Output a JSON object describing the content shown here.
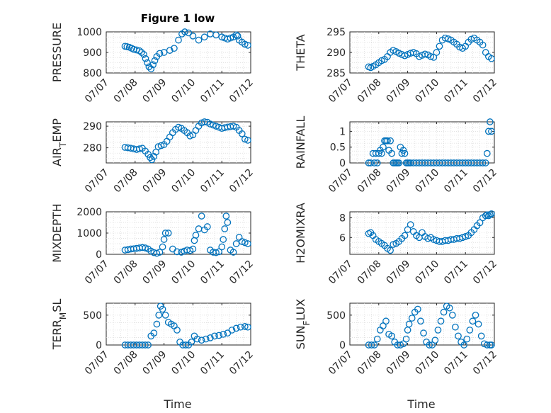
{
  "figure": {
    "title": "Figure 1 low",
    "xlabel": "Time"
  },
  "colors": {
    "marker": "#0072BD",
    "axis": "#262626",
    "grid": "#d9d9d9"
  },
  "chart_data": [
    {
      "type": "scatter",
      "name": "PRESSURE",
      "ylabel": "PRESSURE",
      "xlabel": "",
      "title": "Figure 1 low",
      "x_ticklabels": [
        "07/07",
        "07/08",
        "07/09",
        "07/10",
        "07/11",
        "07/12"
      ],
      "xlim": [
        0,
        5
      ],
      "ylim": [
        800,
        1000
      ],
      "yticks": [
        800,
        900,
        1000
      ],
      "grid": true,
      "x": [
        0.65,
        0.72,
        0.8,
        0.88,
        0.95,
        1.05,
        1.15,
        1.22,
        1.3,
        1.36,
        1.42,
        1.48,
        1.55,
        1.62,
        1.68,
        1.75,
        1.85,
        2.0,
        2.2,
        2.35,
        2.5,
        2.62,
        2.72,
        2.85,
        3.0,
        3.2,
        3.4,
        3.6,
        3.8,
        4.0,
        4.1,
        4.2,
        4.3,
        4.4,
        4.5,
        4.55,
        4.6,
        4.7,
        4.8,
        4.9
      ],
      "y": [
        930,
        928,
        925,
        920,
        915,
        912,
        908,
        900,
        890,
        870,
        850,
        830,
        820,
        840,
        860,
        880,
        895,
        900,
        910,
        920,
        960,
        990,
        1000,
        995,
        980,
        960,
        975,
        990,
        985,
        975,
        970,
        965,
        970,
        975,
        985,
        980,
        960,
        950,
        940,
        935
      ]
    },
    {
      "type": "scatter",
      "name": "THETA",
      "ylabel": "THETA",
      "x_ticklabels": [
        "07/07",
        "07/08",
        "07/09",
        "07/10",
        "07/11",
        "07/12"
      ],
      "xlim": [
        0,
        5
      ],
      "ylim": [
        285,
        295
      ],
      "yticks": [
        285,
        290,
        295
      ],
      "grid": true,
      "x": [
        0.65,
        0.72,
        0.8,
        0.9,
        1.0,
        1.1,
        1.2,
        1.3,
        1.4,
        1.5,
        1.6,
        1.7,
        1.8,
        1.9,
        2.0,
        2.1,
        2.2,
        2.3,
        2.4,
        2.5,
        2.6,
        2.7,
        2.8,
        2.9,
        3.0,
        3.1,
        3.2,
        3.3,
        3.4,
        3.5,
        3.6,
        3.7,
        3.8,
        3.9,
        4.0,
        4.1,
        4.2,
        4.3,
        4.4,
        4.5,
        4.6,
        4.7,
        4.8,
        4.9
      ],
      "y": [
        286.5,
        286.3,
        286.6,
        287,
        287.5,
        288,
        288.3,
        289,
        290,
        290.5,
        290.2,
        289.8,
        289.5,
        289.2,
        289.5,
        289.8,
        290,
        289.7,
        289,
        289.3,
        289.6,
        289.4,
        289,
        288.8,
        290,
        291.5,
        293,
        293.5,
        293.3,
        293,
        292.5,
        292,
        291.3,
        291,
        291.5,
        292.5,
        293.2,
        293.5,
        293,
        292.5,
        291.8,
        290,
        289,
        288.5
      ]
    },
    {
      "type": "scatter",
      "name": "AIR_TEMP",
      "ylabel": "AIR_TEMP",
      "x_ticklabels": [
        "07/07",
        "07/08",
        "07/09",
        "07/10",
        "07/11",
        "07/12"
      ],
      "xlim": [
        0,
        5
      ],
      "ylim": [
        273,
        292
      ],
      "yticks": [
        280,
        290
      ],
      "grid": true,
      "x": [
        0.65,
        0.75,
        0.85,
        0.95,
        1.05,
        1.15,
        1.25,
        1.35,
        1.45,
        1.52,
        1.58,
        1.65,
        1.72,
        1.8,
        1.9,
        2.0,
        2.1,
        2.2,
        2.3,
        2.4,
        2.5,
        2.6,
        2.7,
        2.8,
        2.9,
        3.0,
        3.1,
        3.2,
        3.3,
        3.4,
        3.5,
        3.6,
        3.7,
        3.8,
        3.9,
        4.0,
        4.1,
        4.2,
        4.3,
        4.4,
        4.5,
        4.6,
        4.7,
        4.8,
        4.9
      ],
      "y": [
        280.2,
        280,
        279.8,
        279.5,
        279.2,
        279.5,
        279.8,
        278.5,
        277,
        275.5,
        274.5,
        276,
        278,
        280.5,
        281,
        281.5,
        283,
        285,
        287,
        288.5,
        289.5,
        289,
        288,
        287,
        285.5,
        286,
        288,
        290,
        291.5,
        292,
        291.8,
        291,
        290.5,
        290,
        289.5,
        289,
        289.3,
        289.6,
        289.8,
        290,
        289.5,
        288,
        286.5,
        284,
        283.5
      ]
    },
    {
      "type": "scatter",
      "name": "RAINFALL",
      "ylabel": "RAINFALL",
      "x_ticklabels": [
        "07/07",
        "07/08",
        "07/09",
        "07/10",
        "07/11",
        "07/12"
      ],
      "xlim": [
        0,
        5
      ],
      "ylim": [
        0,
        1.3
      ],
      "yticks": [
        0,
        0.5,
        1
      ],
      "grid": true,
      "x": [
        0.65,
        0.72,
        0.8,
        0.85,
        0.9,
        0.95,
        1.0,
        1.05,
        1.1,
        1.15,
        1.2,
        1.25,
        1.3,
        1.35,
        1.4,
        1.45,
        1.5,
        1.55,
        1.6,
        1.65,
        1.7,
        1.75,
        1.8,
        1.85,
        1.9,
        1.95,
        2.0,
        2.05,
        2.1,
        2.2,
        2.3,
        2.4,
        2.5,
        2.6,
        2.7,
        2.8,
        2.9,
        3.0,
        3.1,
        3.2,
        3.3,
        3.4,
        3.5,
        3.6,
        3.7,
        3.8,
        3.9,
        4.0,
        4.1,
        4.2,
        4.3,
        4.4,
        4.5,
        4.6,
        4.7,
        4.75,
        4.8,
        4.85,
        4.9
      ],
      "y": [
        0,
        0,
        0.3,
        0,
        0.3,
        0,
        0.3,
        0.4,
        0.3,
        0.5,
        0.7,
        0.7,
        0.7,
        0.4,
        0.7,
        0.3,
        0,
        0,
        0,
        0,
        0,
        0.5,
        0.3,
        0.4,
        0.3,
        0,
        0,
        0,
        0,
        0,
        0,
        0,
        0,
        0,
        0,
        0,
        0,
        0,
        0,
        0,
        0,
        0,
        0,
        0,
        0,
        0,
        0,
        0,
        0,
        0,
        0,
        0,
        0,
        0,
        0,
        0.3,
        1.0,
        1.3,
        1.0
      ]
    },
    {
      "type": "scatter",
      "name": "MIXDEPTH",
      "ylabel": "MIXDEPTH",
      "x_ticklabels": [
        "07/07",
        "07/08",
        "07/09",
        "07/10",
        "07/11",
        "07/12"
      ],
      "xlim": [
        0,
        5
      ],
      "ylim": [
        0,
        2000
      ],
      "yticks": [
        0,
        1000,
        2000
      ],
      "grid": true,
      "x": [
        0.65,
        0.75,
        0.85,
        0.95,
        1.05,
        1.15,
        1.25,
        1.35,
        1.45,
        1.55,
        1.65,
        1.75,
        1.85,
        1.95,
        2.0,
        2.05,
        2.15,
        2.3,
        2.45,
        2.6,
        2.7,
        2.8,
        2.9,
        3.0,
        3.05,
        3.1,
        3.2,
        3.3,
        3.4,
        3.5,
        3.6,
        3.7,
        3.8,
        3.9,
        4.0,
        4.05,
        4.1,
        4.15,
        4.2,
        4.3,
        4.4,
        4.5,
        4.6,
        4.7,
        4.8,
        4.9
      ],
      "y": [
        200,
        220,
        250,
        260,
        280,
        300,
        320,
        300,
        250,
        150,
        80,
        50,
        100,
        350,
        700,
        1000,
        1000,
        250,
        120,
        100,
        150,
        200,
        180,
        250,
        650,
        900,
        1200,
        1800,
        1150,
        1300,
        200,
        100,
        80,
        120,
        350,
        700,
        1200,
        1800,
        1500,
        200,
        100,
        500,
        800,
        600,
        550,
        500
      ]
    },
    {
      "type": "scatter",
      "name": "H2OMIXRA",
      "ylabel": "H2OMIXRA",
      "x_ticklabels": [
        "07/07",
        "07/08",
        "07/09",
        "07/10",
        "07/11",
        "07/12"
      ],
      "xlim": [
        0,
        5
      ],
      "ylim": [
        4.3,
        8.6
      ],
      "yticks": [
        6,
        8
      ],
      "grid": true,
      "x": [
        0.65,
        0.72,
        0.8,
        0.9,
        1.0,
        1.1,
        1.2,
        1.3,
        1.4,
        1.5,
        1.6,
        1.7,
        1.8,
        1.9,
        2.0,
        2.1,
        2.2,
        2.3,
        2.4,
        2.5,
        2.6,
        2.7,
        2.8,
        2.9,
        3.0,
        3.1,
        3.2,
        3.3,
        3.4,
        3.5,
        3.6,
        3.7,
        3.8,
        3.9,
        4.0,
        4.1,
        4.2,
        4.3,
        4.4,
        4.5,
        4.6,
        4.7,
        4.75,
        4.8,
        4.85,
        4.9
      ],
      "y": [
        6.4,
        6.5,
        6.2,
        5.8,
        5.6,
        5.4,
        5.2,
        4.9,
        4.7,
        5.3,
        5.4,
        5.6,
        5.9,
        6.2,
        6.8,
        7.3,
        6.6,
        6.2,
        6,
        6.5,
        6.1,
        5.9,
        6,
        5.8,
        5.7,
        5.6,
        5.6,
        5.7,
        5.7,
        5.8,
        5.8,
        5.9,
        5.9,
        6,
        6.1,
        6.2,
        6.5,
        6.8,
        7.2,
        7.5,
        8.0,
        8.2,
        8.3,
        8.2,
        8.3,
        8.4
      ]
    },
    {
      "type": "scatter",
      "name": "TERR_MSL",
      "ylabel": "TERR_MSL",
      "x_ticklabels": [
        "07/07",
        "07/08",
        "07/09",
        "07/10",
        "07/11",
        "07/12"
      ],
      "xlim": [
        0,
        5
      ],
      "ylim": [
        0,
        700
      ],
      "yticks": [
        0,
        500
      ],
      "grid": true,
      "x": [
        0.65,
        0.75,
        0.85,
        0.95,
        1.05,
        1.15,
        1.25,
        1.35,
        1.45,
        1.55,
        1.65,
        1.75,
        1.82,
        1.88,
        1.95,
        2.05,
        2.15,
        2.25,
        2.35,
        2.45,
        2.55,
        2.65,
        2.75,
        2.85,
        2.95,
        3.05,
        3.15,
        3.3,
        3.45,
        3.6,
        3.75,
        3.9,
        4.05,
        4.2,
        4.35,
        4.5,
        4.65,
        4.8,
        4.9
      ],
      "y": [
        0,
        0,
        0,
        0,
        0,
        0,
        0,
        0,
        0,
        150,
        200,
        350,
        500,
        650,
        600,
        500,
        380,
        350,
        320,
        250,
        50,
        0,
        0,
        0,
        50,
        150,
        100,
        80,
        100,
        120,
        150,
        160,
        180,
        200,
        250,
        280,
        300,
        310,
        300
      ]
    },
    {
      "type": "scatter",
      "name": "SUN_FLUX",
      "ylabel": "SUN_FLUX",
      "x_ticklabels": [
        "07/07",
        "07/08",
        "07/09",
        "07/10",
        "07/11",
        "07/12"
      ],
      "xlim": [
        0,
        5
      ],
      "ylim": [
        0,
        700
      ],
      "yticks": [
        0,
        500
      ],
      "grid": true,
      "x": [
        0.65,
        0.75,
        0.85,
        0.95,
        1.05,
        1.15,
        1.25,
        1.35,
        1.45,
        1.55,
        1.65,
        1.75,
        1.85,
        1.95,
        2.0,
        2.05,
        2.15,
        2.25,
        2.35,
        2.45,
        2.55,
        2.65,
        2.75,
        2.85,
        2.95,
        3.05,
        3.15,
        3.25,
        3.35,
        3.45,
        3.55,
        3.65,
        3.75,
        3.85,
        3.95,
        4.05,
        4.15,
        4.25,
        4.35,
        4.45,
        4.55,
        4.65,
        4.75,
        4.85,
        4.9
      ],
      "y": [
        0,
        0,
        0,
        100,
        250,
        320,
        400,
        180,
        150,
        50,
        0,
        0,
        20,
        100,
        250,
        350,
        450,
        550,
        600,
        400,
        200,
        50,
        0,
        0,
        80,
        250,
        400,
        550,
        650,
        620,
        500,
        300,
        150,
        50,
        0,
        100,
        250,
        400,
        500,
        350,
        150,
        20,
        0,
        0,
        0
      ]
    }
  ]
}
